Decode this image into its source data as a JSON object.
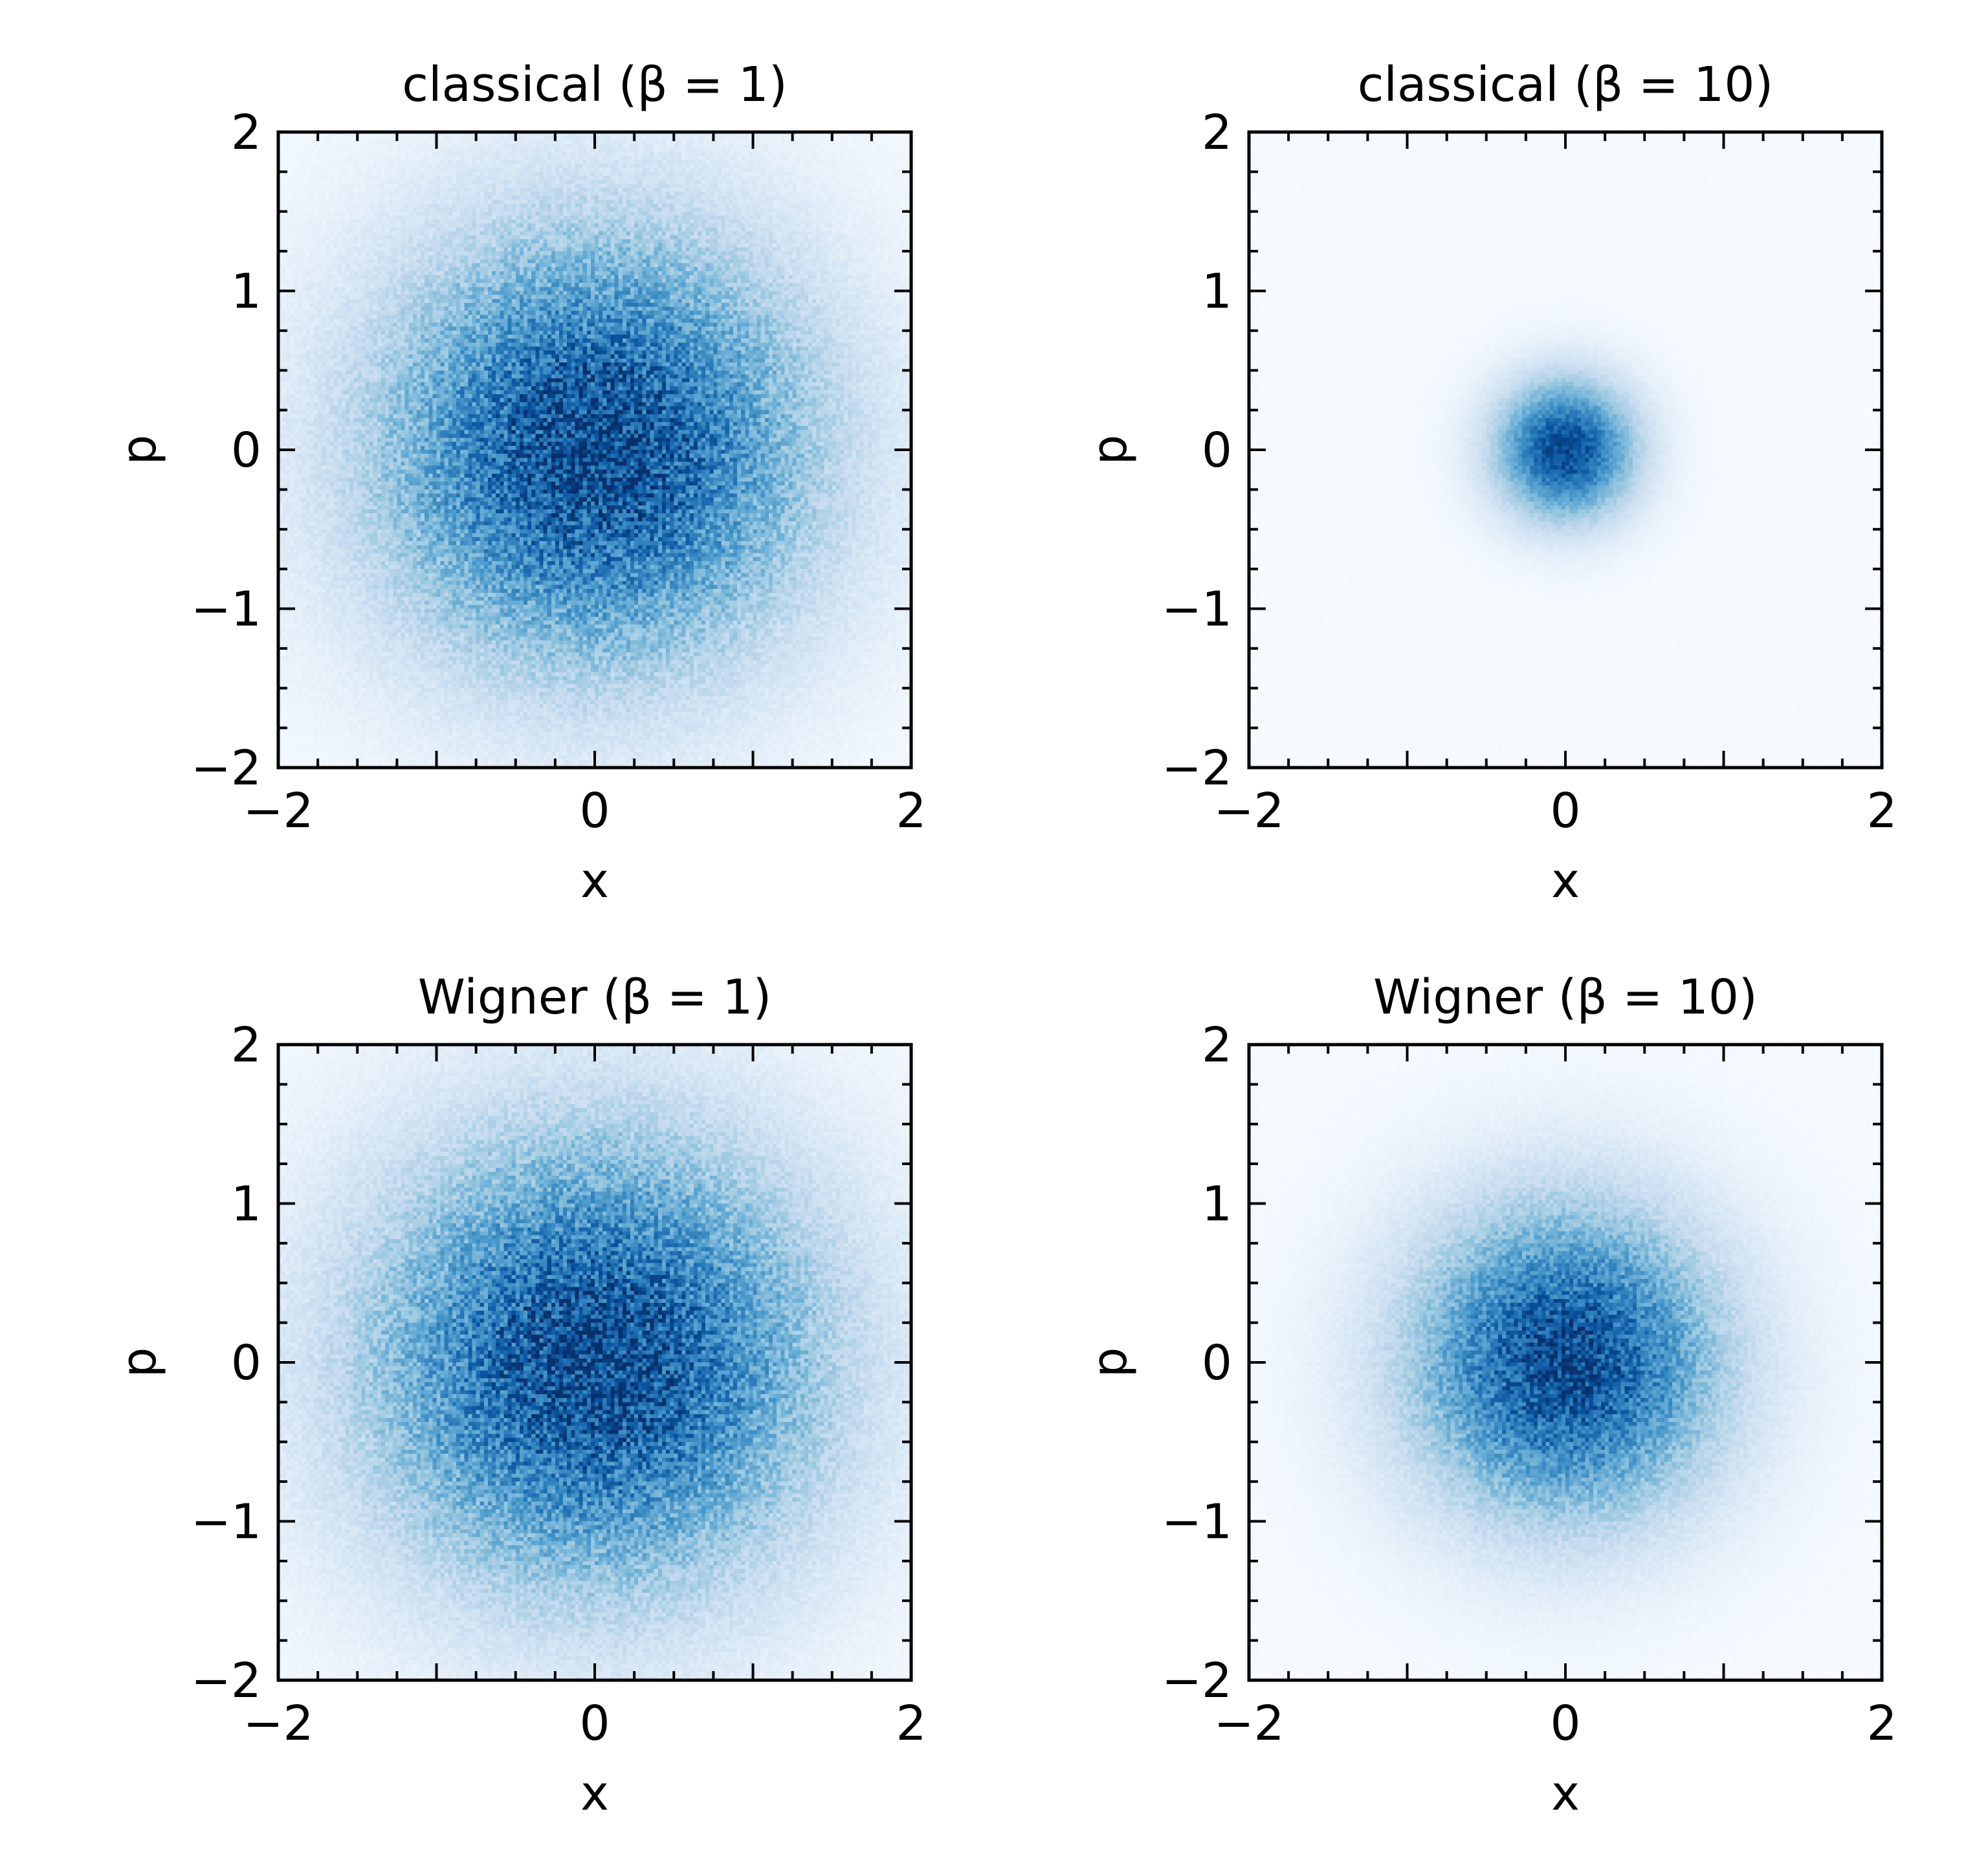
{
  "figure": {
    "colormap": "Blues",
    "colors": {
      "low": "#f7fbff",
      "high": "#08306b",
      "frame": "#000000"
    }
  },
  "chart_data": [
    {
      "type": "heatmap",
      "title": "classical (β = 1)",
      "xlabel": "x",
      "ylabel": "p",
      "xlim": [
        -2,
        2
      ],
      "ylim": [
        -2,
        2
      ],
      "xticks": [
        -2,
        0,
        2
      ],
      "xtick_labels": [
        "−2",
        "0",
        "2"
      ],
      "yticks": [
        -2,
        -1,
        0,
        1,
        2
      ],
      "ytick_labels": [
        "−2",
        "−1",
        "0",
        "1",
        "2"
      ],
      "grid": false,
      "distribution": {
        "kind": "2d-gaussian-histogram",
        "center": [
          0,
          0
        ],
        "sigma_x": 1.0,
        "sigma_p": 1.0,
        "bins": 160,
        "noise": 0.28
      }
    },
    {
      "type": "heatmap",
      "title": "classical (β = 10)",
      "xlabel": "x",
      "ylabel": "p",
      "xlim": [
        -2,
        2
      ],
      "ylim": [
        -2,
        2
      ],
      "xticks": [
        -2,
        0,
        2
      ],
      "xtick_labels": [
        "−2",
        "0",
        "2"
      ],
      "yticks": [
        -2,
        -1,
        0,
        1,
        2
      ],
      "ytick_labels": [
        "−2",
        "−1",
        "0",
        "1",
        "2"
      ],
      "grid": false,
      "distribution": {
        "kind": "2d-gaussian-histogram",
        "center": [
          0,
          0
        ],
        "sigma_x": 0.316,
        "sigma_p": 0.316,
        "bins": 160,
        "noise": 0.12
      }
    },
    {
      "type": "heatmap",
      "title": "Wigner (β = 1)",
      "xlabel": "x",
      "ylabel": "p",
      "xlim": [
        -2,
        2
      ],
      "ylim": [
        -2,
        2
      ],
      "xticks": [
        -2,
        0,
        2
      ],
      "xtick_labels": [
        "−2",
        "0",
        "2"
      ],
      "yticks": [
        -2,
        -1,
        0,
        1,
        2
      ],
      "ytick_labels": [
        "−2",
        "−1",
        "0",
        "1",
        "2"
      ],
      "grid": false,
      "distribution": {
        "kind": "2d-gaussian-histogram",
        "center": [
          0,
          0
        ],
        "sigma_x": 1.04,
        "sigma_p": 1.04,
        "bins": 160,
        "noise": 0.28
      }
    },
    {
      "type": "heatmap",
      "title": "Wigner (β = 10)",
      "xlabel": "x",
      "ylabel": "p",
      "xlim": [
        -2,
        2
      ],
      "ylim": [
        -2,
        2
      ],
      "xticks": [
        -2,
        0,
        2
      ],
      "xtick_labels": [
        "−2",
        "0",
        "2"
      ],
      "yticks": [
        -2,
        -1,
        0,
        1,
        2
      ],
      "ytick_labels": [
        "−2",
        "−1",
        "0",
        "1",
        "2"
      ],
      "grid": false,
      "distribution": {
        "kind": "2d-gaussian-histogram",
        "center": [
          0,
          0
        ],
        "sigma_x": 0.707,
        "sigma_p": 0.707,
        "bins": 160,
        "noise": 0.22
      }
    }
  ]
}
